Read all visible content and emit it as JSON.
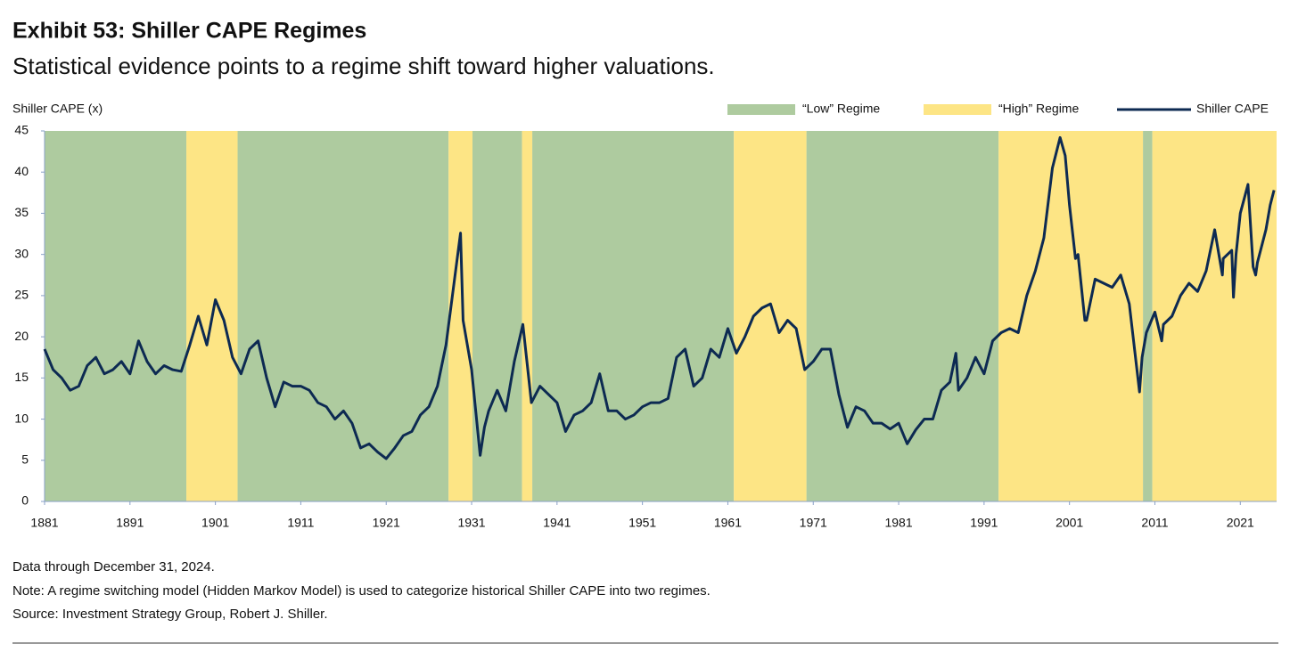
{
  "chart_data": {
    "type": "line",
    "title": "Exhibit 53: Shiller CAPE Regimes",
    "subtitle": "Statistical evidence points to a regime shift toward higher valuations.",
    "y_label": "Shiller CAPE (x)",
    "notes": [
      "Data through December 31, 2024.",
      "Note: A regime switching model (Hidden Markov Model) is used to categorize historical Shiller CAPE into two regimes.",
      "Source: Investment Strategy Group, Robert J. Shiller."
    ],
    "legend": "top-right",
    "xlim": [
      1881,
      2025.25
    ],
    "xticks": [
      1881,
      1891,
      1901,
      1911,
      1921,
      1931,
      1941,
      1951,
      1961,
      1971,
      1981,
      1991,
      2001,
      2011,
      2021
    ],
    "ylim": [
      0,
      45
    ],
    "yticks": [
      0,
      5,
      10,
      15,
      20,
      25,
      30,
      35,
      40,
      45
    ],
    "regimes": [
      {
        "name": "“Low” Regime",
        "color": "#aecb9f",
        "periods": [
          [
            1881,
            1897.6
          ],
          [
            1903.6,
            1928.3
          ],
          [
            1931.1,
            1936.9
          ],
          [
            1938.1,
            1961.7
          ],
          [
            1970.2,
            1992.7
          ],
          [
            2009.6,
            2010.7
          ]
        ]
      },
      {
        "name": "“High” Regime",
        "color": "#fde585",
        "periods": [
          [
            1897.6,
            1903.6
          ],
          [
            1928.3,
            1931.1
          ],
          [
            1936.9,
            1938.1
          ],
          [
            1961.7,
            1970.2
          ],
          [
            1992.7,
            2009.6
          ],
          [
            2010.7,
            2025.25
          ]
        ]
      }
    ],
    "x": [
      1881,
      1882,
      1883,
      1884,
      1885,
      1886,
      1887,
      1888,
      1889,
      1890,
      1891,
      1892,
      1893,
      1894,
      1895,
      1896,
      1897,
      1898,
      1899,
      1900,
      1901,
      1902,
      1903,
      1904,
      1905,
      1906,
      1907,
      1908,
      1909,
      1910,
      1911,
      1912,
      1913,
      1914,
      1915,
      1916,
      1917,
      1918,
      1919,
      1920,
      1921,
      1922,
      1923,
      1924,
      1925,
      1926,
      1927,
      1928,
      1929,
      1929.7,
      1930,
      1931,
      1932,
      1932.5,
      1933,
      1934,
      1935,
      1936,
      1937,
      1938,
      1939,
      1940,
      1941,
      1942,
      1943,
      1944,
      1945,
      1946,
      1947,
      1948,
      1949,
      1950,
      1951,
      1952,
      1953,
      1954,
      1955,
      1956,
      1957,
      1958,
      1959,
      1960,
      1961,
      1962,
      1963,
      1964,
      1965,
      1966,
      1967,
      1968,
      1969,
      1970,
      1971,
      1972,
      1973,
      1974,
      1975,
      1976,
      1977,
      1978,
      1979,
      1980,
      1981,
      1982,
      1983,
      1984,
      1985,
      1986,
      1987,
      1987.7,
      1988,
      1989,
      1990,
      1991,
      1992,
      1993,
      1994,
      1995,
      1996,
      1997,
      1998,
      1999,
      1999.9,
      2000.5,
      2001,
      2001.7,
      2002,
      2002.8,
      2003,
      2004,
      2005,
      2006,
      2007,
      2008,
      2009.2,
      2009.5,
      2010,
      2011,
      2011.8,
      2012,
      2013,
      2014,
      2015,
      2016,
      2017,
      2018,
      2018.9,
      2019,
      2020,
      2020.2,
      2020.5,
      2021,
      2021.9,
      2022.5,
      2022.8,
      2023,
      2023.5,
      2024,
      2024.5,
      2024.95
    ],
    "series": [
      {
        "name": "Shiller CAPE",
        "color": "#0d2a52",
        "values": [
          18.5,
          16,
          15,
          13.5,
          14,
          16.5,
          17.5,
          15.5,
          16,
          17,
          15.5,
          19.5,
          17,
          15.5,
          16.5,
          16,
          15.8,
          19,
          22.5,
          19,
          24.5,
          22,
          17.5,
          15.5,
          18.5,
          19.5,
          15,
          11.5,
          14.5,
          14,
          14,
          13.5,
          12,
          11.5,
          10,
          11,
          9.5,
          6.5,
          7,
          6,
          5.2,
          6.5,
          8,
          8.5,
          10.5,
          11.5,
          14,
          19,
          27,
          32.6,
          22,
          16,
          5.6,
          9,
          11,
          13.5,
          11,
          17,
          21.5,
          12,
          14,
          13,
          12,
          8.5,
          10.5,
          11,
          12,
          15.5,
          11,
          11,
          10,
          10.5,
          11.5,
          12,
          12,
          12.5,
          17.5,
          18.5,
          14,
          15,
          18.5,
          17.5,
          21,
          18,
          20,
          22.5,
          23.5,
          24,
          20.5,
          22,
          21,
          16,
          17,
          18.5,
          18.5,
          13,
          9,
          11.5,
          11,
          9.5,
          9.5,
          8.8,
          9.5,
          7,
          8.7,
          10,
          10,
          13.5,
          14.5,
          18,
          13.5,
          15,
          17.5,
          15.5,
          19.5,
          20.5,
          21,
          20.5,
          25,
          28,
          32,
          40.5,
          44.2,
          42,
          36,
          29.5,
          30,
          22,
          22,
          27,
          26.5,
          26,
          27.5,
          24,
          13.3,
          17.5,
          20.5,
          23,
          19.5,
          21.5,
          22.5,
          25,
          26.5,
          25.5,
          28,
          33,
          27.5,
          29.5,
          30.5,
          24.8,
          30,
          35,
          38.5,
          28.5,
          27.5,
          29,
          31,
          33,
          36,
          37.8
        ]
      }
    ]
  }
}
